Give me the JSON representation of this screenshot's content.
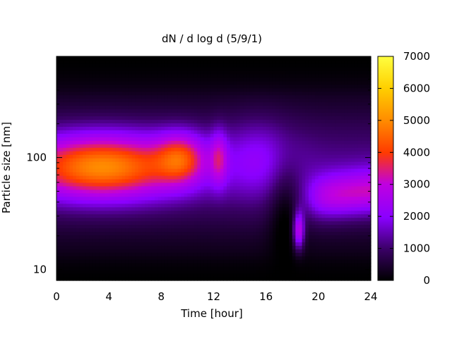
{
  "chart_data": {
    "type": "heatmap",
    "title": "dN / d log d (5/9/1)",
    "xlabel": "Time [hour]",
    "ylabel": "Particle size [nm]",
    "x_range": [
      0,
      24
    ],
    "x_ticks": [
      0,
      4,
      8,
      12,
      16,
      20,
      24
    ],
    "y_scale": "log",
    "y_range_nm": [
      8,
      800
    ],
    "y_tick_labels": [
      "10",
      "100"
    ],
    "y_tick_values": [
      10,
      100
    ],
    "colorbar": {
      "range": [
        0,
        7000
      ],
      "ticks": [
        0,
        1000,
        2000,
        3000,
        4000,
        5000,
        6000,
        7000
      ],
      "colormap": [
        "#000000",
        "#3a0066",
        "#8a00ff",
        "#c000e0",
        "#ff3a00",
        "#ff8a00",
        "#ffd000",
        "#ffff40"
      ]
    },
    "peak_mode": {
      "time_hours": [
        0,
        11
      ],
      "peak_diameter_nm": 80,
      "max_concentration": 5500
    },
    "grid": false
  }
}
